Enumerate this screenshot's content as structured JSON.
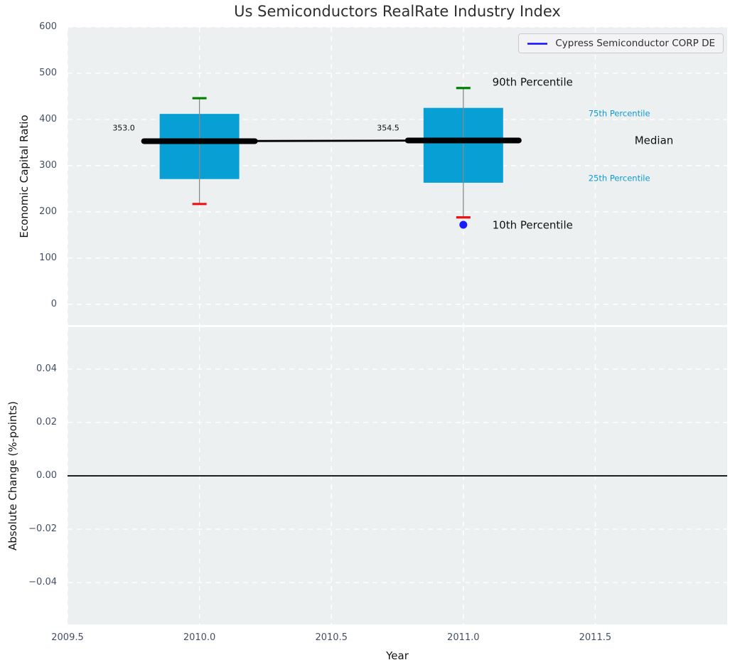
{
  "title": "Us Semiconductors RealRate Industry Index",
  "legend": {
    "label": "Cypress Semiconductor CORP DE"
  },
  "panels": {
    "top": {
      "ylabel": "Economic Capital Ratio"
    },
    "bottom": {
      "ylabel": "Absolute Change (%-points)",
      "xlabel": "Year"
    }
  },
  "colors": {
    "plot_bg": "#edf0f1",
    "grid": "#ffffff",
    "tick_text": "#415066",
    "box_fill": "#089fd4",
    "whisker": "#8a8a8a",
    "cap_high": "#008000",
    "cap_low": "#ee1111",
    "median_line": "#000000",
    "series_marker": "#1a1aff",
    "legend_line": "#0f0fff",
    "percentile_text": "#0d9bd4",
    "annotation_text": "#111111",
    "zero_line": "#000000"
  },
  "chart_data": [
    {
      "type": "bar",
      "subtype": "boxplot-timeseries",
      "title": "Us Semiconductors RealRate Industry Index",
      "ylabel": "Economic Capital Ratio",
      "xlim": [
        2009.5,
        2012.0
      ],
      "ylim": [
        -45,
        600
      ],
      "ytickvals": [
        0,
        100,
        200,
        300,
        400,
        500,
        600
      ],
      "yticklabels": [
        "0",
        "100",
        "200",
        "300",
        "400",
        "500",
        "600"
      ],
      "xtickvals": [
        2009.5,
        2010.0,
        2010.5,
        2011.0,
        2011.5
      ],
      "xticklabels": [
        "2009.5",
        "2010.0",
        "2010.5",
        "2011.0",
        "2011.5"
      ],
      "grid": "white-dashed",
      "legend_position": "upper-right",
      "boxes": [
        {
          "x": 2010,
          "p10": 217,
          "p25": 271,
          "median": 353.0,
          "p75": 412,
          "p90": 446,
          "median_label": "353.0"
        },
        {
          "x": 2011,
          "p10": 188,
          "p25": 263,
          "median": 354.5,
          "p75": 425,
          "p90": 468,
          "median_label": "354.5"
        }
      ],
      "median_series": {
        "x": [
          2010,
          2011
        ],
        "y": [
          353.0,
          354.5
        ]
      },
      "series": [
        {
          "name": "Cypress Semiconductor CORP DE",
          "x": [
            2011
          ],
          "y": [
            172
          ],
          "marker": "circle"
        }
      ],
      "annotations": [
        {
          "text": "353.0",
          "x": 2009.713,
          "y": 381,
          "size": 11,
          "color": "#111111",
          "align": "center"
        },
        {
          "text": "354.5",
          "x": 2010.715,
          "y": 381,
          "size": 11,
          "color": "#111111",
          "align": "center"
        },
        {
          "text": "90th Percentile",
          "x": 2011.11,
          "y": 480,
          "size": 15,
          "color": "#111111",
          "align": "left"
        },
        {
          "text": "75th Percentile",
          "x": 2011.474,
          "y": 412,
          "size": 11.5,
          "color": "#0d9bd4",
          "align": "left"
        },
        {
          "text": "Median",
          "x": 2011.649,
          "y": 354,
          "size": 15,
          "color": "#111111",
          "align": "left"
        },
        {
          "text": "25th Percentile",
          "x": 2011.474,
          "y": 272,
          "size": 11.5,
          "color": "#0d9bd4",
          "align": "left"
        },
        {
          "text": "10th Percentile",
          "x": 2011.11,
          "y": 171,
          "size": 15,
          "color": "#111111",
          "align": "left"
        }
      ]
    },
    {
      "type": "line",
      "ylabel": "Absolute Change (%-points)",
      "xlabel": "Year",
      "xlim": [
        2009.5,
        2012.0
      ],
      "ylim": [
        -0.0557,
        0.0557
      ],
      "ytickvals": [
        0.04,
        0.02,
        0.0,
        -0.02,
        -0.04
      ],
      "yticklabels": [
        "0.04",
        "0.02",
        "0.00",
        "−0.02",
        "−0.04"
      ],
      "xtickvals": [
        2009.5,
        2010.0,
        2010.5,
        2011.0,
        2011.5
      ],
      "xticklabels": [
        "2009.5",
        "2010.0",
        "2010.5",
        "2011.0",
        "2011.5"
      ],
      "grid": "white-dashed",
      "zero_line": true,
      "series": []
    }
  ]
}
